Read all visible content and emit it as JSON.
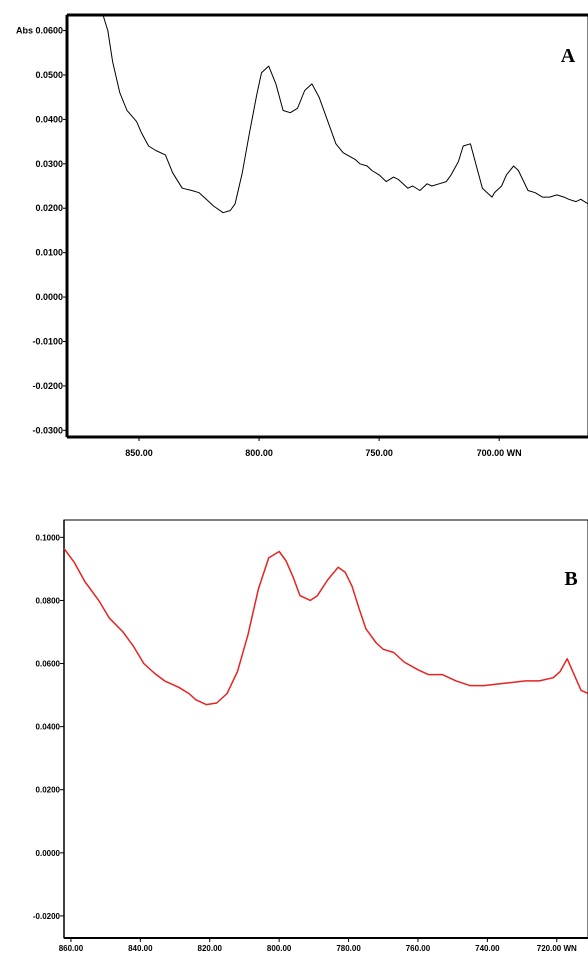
{
  "chart_data": [
    {
      "type": "line",
      "panel_label": "A",
      "ylabel": "Abs",
      "xlabel": "WN",
      "xlim": [
        880,
        663
      ],
      "ylim": [
        -0.0315,
        0.0635
      ],
      "x_ticks": [
        850,
        800,
        750,
        700
      ],
      "x_tick_labels": [
        "850.00",
        "800.00",
        "750.00",
        "700.00 WN"
      ],
      "y_ticks": [
        0.06,
        0.05,
        0.04,
        0.03,
        0.02,
        0.01,
        0.0,
        -0.01,
        -0.02,
        -0.03
      ],
      "y_tick_labels": [
        "Abs 0.0600",
        "0.0500",
        "0.0400",
        "0.0300",
        "0.0200",
        "0.0100",
        "0.0000",
        "-0.0100",
        "-0.0200",
        "-0.0300"
      ],
      "line_color": "#000000",
      "series": [
        {
          "x": [
            865,
            863,
            861,
            858,
            855,
            851,
            849,
            846,
            843,
            839,
            836,
            832,
            828,
            825,
            822,
            819,
            815,
            812,
            810,
            807,
            804,
            801,
            799,
            796,
            793,
            790,
            787,
            784,
            781,
            778,
            775,
            772,
            768,
            765,
            760,
            758,
            755,
            753,
            750,
            747,
            744,
            742,
            738,
            736,
            733,
            730,
            728,
            725,
            722,
            720,
            717,
            715,
            712,
            709,
            707,
            705,
            703,
            702,
            699,
            697,
            694,
            692,
            688,
            685,
            682,
            679,
            676,
            673,
            671,
            668,
            666,
            663
          ],
          "y": [
            0.064,
            0.06,
            0.053,
            0.046,
            0.042,
            0.0395,
            0.037,
            0.034,
            0.033,
            0.032,
            0.028,
            0.0245,
            0.024,
            0.0235,
            0.022,
            0.0205,
            0.019,
            0.0195,
            0.021,
            0.028,
            0.037,
            0.0455,
            0.0505,
            0.052,
            0.048,
            0.042,
            0.0415,
            0.0425,
            0.0465,
            0.048,
            0.045,
            0.0405,
            0.0345,
            0.0325,
            0.031,
            0.03,
            0.0295,
            0.0285,
            0.0275,
            0.026,
            0.027,
            0.0265,
            0.0245,
            0.025,
            0.024,
            0.0255,
            0.025,
            0.0255,
            0.026,
            0.0275,
            0.0305,
            0.034,
            0.0345,
            0.0285,
            0.0245,
            0.0235,
            0.0225,
            0.0235,
            0.025,
            0.0275,
            0.0295,
            0.0285,
            0.024,
            0.0235,
            0.0225,
            0.0225,
            0.023,
            0.0225,
            0.022,
            0.0215,
            0.022,
            0.021
          ]
        }
      ]
    },
    {
      "type": "line",
      "panel_label": "B",
      "ylabel": "",
      "xlabel": "WN",
      "xlim": [
        862,
        711
      ],
      "ylim": [
        -0.027,
        0.1055
      ],
      "x_ticks": [
        860,
        840,
        820,
        800,
        780,
        760,
        740,
        720
      ],
      "x_tick_labels": [
        "860.00",
        "840.00",
        "820.00",
        "800.00",
        "780.00",
        "760.00",
        "740.00",
        "720.00 WN"
      ],
      "y_ticks": [
        0.1,
        0.08,
        0.06,
        0.04,
        0.02,
        0.0,
        -0.02
      ],
      "y_tick_labels": [
        "0.1000",
        "0.0800",
        "0.0600",
        "0.0400",
        "0.0200",
        "0.0000",
        "-0.0200"
      ],
      "line_color": "#e8231f",
      "series": [
        {
          "x": [
            862,
            859,
            856,
            852,
            849,
            845,
            842,
            839,
            836,
            833,
            829,
            826,
            824,
            821,
            818,
            815,
            812,
            809,
            806,
            803,
            800,
            798,
            796,
            794,
            791,
            789,
            786,
            783,
            781,
            779,
            777,
            775,
            772,
            770,
            767,
            764,
            760,
            757,
            753,
            749,
            745,
            741,
            737,
            733,
            729,
            725,
            721,
            719,
            717,
            715,
            713,
            711
          ],
          "y": [
            0.0965,
            0.092,
            0.086,
            0.08,
            0.0745,
            0.07,
            0.0655,
            0.06,
            0.057,
            0.0545,
            0.0525,
            0.0505,
            0.0485,
            0.047,
            0.0475,
            0.0505,
            0.0575,
            0.069,
            0.0835,
            0.0935,
            0.0955,
            0.0925,
            0.0875,
            0.0815,
            0.08,
            0.0815,
            0.0865,
            0.0905,
            0.089,
            0.0845,
            0.0775,
            0.071,
            0.0665,
            0.0645,
            0.0635,
            0.0605,
            0.058,
            0.0565,
            0.0565,
            0.0545,
            0.053,
            0.053,
            0.0535,
            0.054,
            0.0545,
            0.0545,
            0.0555,
            0.0575,
            0.0615,
            0.0565,
            0.0515,
            0.0505
          ]
        }
      ]
    }
  ]
}
